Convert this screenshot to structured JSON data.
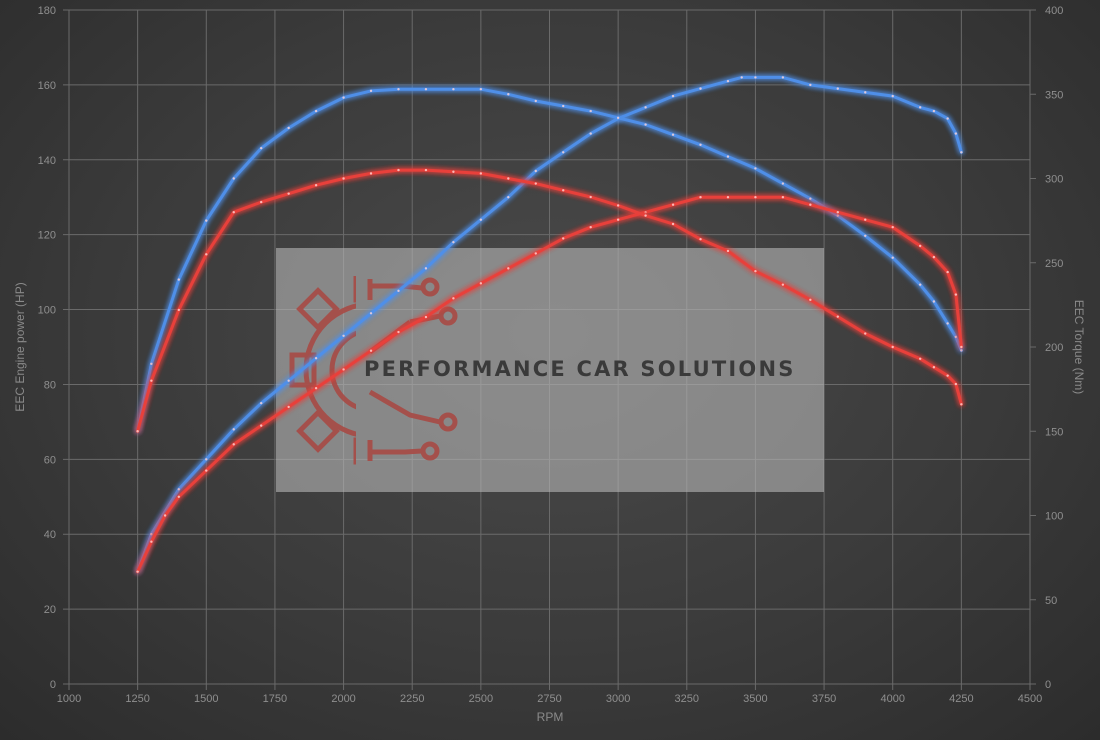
{
  "chart_data": {
    "type": "line",
    "xlabel": "RPM",
    "ylabel_left": "EEC Engine power (HP)",
    "ylabel_right": "EEC Torque (Nm)",
    "xlim": [
      1000,
      4500
    ],
    "ylim_left": [
      0,
      180
    ],
    "ylim_right": [
      0,
      400
    ],
    "x_ticks": [
      "1000",
      "1250",
      "1500",
      "1750",
      "2000",
      "2250",
      "2500",
      "2750",
      "3000",
      "3250",
      "3500",
      "3750",
      "4000",
      "4250",
      "4500"
    ],
    "y_left_ticks": [
      "0",
      "20",
      "40",
      "60",
      "80",
      "100",
      "120",
      "140",
      "160",
      "180"
    ],
    "y_right_ticks": [
      "0",
      "50",
      "100",
      "150",
      "200",
      "250",
      "300",
      "350",
      "400"
    ],
    "grid": true,
    "watermark": "PERFORMANCE CAR SOLUTIONS",
    "series": [
      {
        "axis": "left",
        "color": "#4f8fe8",
        "x": [
          1250,
          1300,
          1400,
          1500,
          1600,
          1700,
          1800,
          1900,
          2000,
          2100,
          2200,
          2300,
          2400,
          2500,
          2600,
          2700,
          2800,
          2900,
          3000,
          3100,
          3200,
          3300,
          3400,
          3450,
          3500,
          3600,
          3700,
          3800,
          3900,
          4000,
          4100,
          4150,
          4200,
          4230,
          4250
        ],
        "y": [
          30,
          40,
          52,
          60,
          68,
          75,
          81,
          87,
          93,
          99,
          105,
          111,
          118,
          124,
          130,
          137,
          142,
          147,
          151,
          154,
          157,
          159,
          161,
          162,
          162,
          162,
          160,
          159,
          158,
          157,
          154,
          153,
          151,
          147,
          142
        ]
      },
      {
        "axis": "right",
        "color": "#4f8fe8",
        "x": [
          1250,
          1300,
          1400,
          1500,
          1600,
          1700,
          1800,
          1900,
          2000,
          2100,
          2200,
          2300,
          2400,
          2500,
          2600,
          2700,
          2800,
          2900,
          3000,
          3100,
          3200,
          3300,
          3400,
          3500,
          3600,
          3700,
          3800,
          3900,
          4000,
          4100,
          4150,
          4200,
          4230,
          4250
        ],
        "y": [
          150,
          190,
          240,
          275,
          300,
          318,
          330,
          340,
          348,
          352,
          353,
          353,
          353,
          353,
          350,
          346,
          343,
          340,
          336,
          332,
          326,
          320,
          313,
          306,
          297,
          288,
          278,
          266,
          253,
          237,
          227,
          214,
          206,
          198
        ]
      },
      {
        "axis": "left",
        "color": "#e8403a",
        "x": [
          1250,
          1300,
          1350,
          1400,
          1500,
          1600,
          1700,
          1800,
          1900,
          2000,
          2100,
          2200,
          2300,
          2400,
          2500,
          2600,
          2700,
          2800,
          2900,
          3000,
          3100,
          3200,
          3300,
          3400,
          3500,
          3600,
          3700,
          3800,
          3900,
          4000,
          4100,
          4150,
          4200,
          4230,
          4250
        ],
        "y": [
          30,
          38,
          45,
          50,
          57,
          64,
          69,
          74,
          79,
          84,
          89,
          94,
          98,
          103,
          107,
          111,
          115,
          119,
          122,
          124,
          126,
          128,
          130,
          130,
          130,
          130,
          128,
          126,
          124,
          122,
          117,
          114,
          110,
          104,
          90
        ]
      },
      {
        "axis": "right",
        "color": "#e8403a",
        "x": [
          1250,
          1300,
          1400,
          1500,
          1600,
          1700,
          1800,
          1900,
          2000,
          2100,
          2200,
          2300,
          2400,
          2500,
          2600,
          2700,
          2800,
          2900,
          3000,
          3100,
          3200,
          3300,
          3400,
          3500,
          3600,
          3700,
          3800,
          3900,
          4000,
          4100,
          4150,
          4200,
          4230,
          4250
        ],
        "y": [
          150,
          180,
          222,
          255,
          280,
          286,
          291,
          296,
          300,
          303,
          305,
          305,
          304,
          303,
          300,
          297,
          293,
          289,
          284,
          278,
          273,
          264,
          257,
          245,
          237,
          228,
          218,
          208,
          200,
          193,
          188,
          183,
          178,
          166
        ]
      }
    ]
  }
}
